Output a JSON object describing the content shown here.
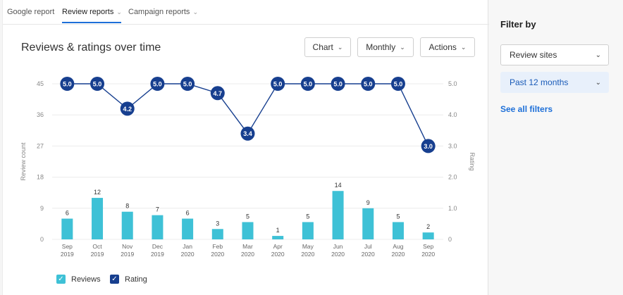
{
  "tabs": [
    {
      "label": "Google report"
    },
    {
      "label": "Review reports",
      "chevron": "chevron-down-icon"
    },
    {
      "label": "Campaign reports",
      "chevron": "chevron-down-icon"
    }
  ],
  "header": {
    "title": "Reviews & ratings over time",
    "chart_label": "Chart",
    "period_label": "Monthly",
    "actions_label": "Actions"
  },
  "legend": {
    "reviews_label": "Reviews",
    "rating_label": "Rating"
  },
  "sidebar": {
    "title": "Filter by",
    "review_sites_label": "Review sites",
    "date_range_label": "Past 12 months",
    "see_all_label": "See all filters"
  },
  "colors": {
    "reviews_bar": "#3ec1d6",
    "rating_line": "#173f8f",
    "accent": "#1d6fd8"
  },
  "chart_data": {
    "type": "bar+line",
    "categories": [
      [
        "Sep",
        "2019"
      ],
      [
        "Oct",
        "2019"
      ],
      [
        "Nov",
        "2019"
      ],
      [
        "Dec",
        "2019"
      ],
      [
        "Jan",
        "2020"
      ],
      [
        "Feb",
        "2020"
      ],
      [
        "Mar",
        "2020"
      ],
      [
        "Apr",
        "2020"
      ],
      [
        "May",
        "2020"
      ],
      [
        "Jun",
        "2020"
      ],
      [
        "Jul",
        "2020"
      ],
      [
        "Aug",
        "2020"
      ],
      [
        "Sep",
        "2020"
      ]
    ],
    "series": [
      {
        "name": "Reviews",
        "type": "bar",
        "axis": "left",
        "values": [
          6,
          12,
          8,
          7,
          6,
          3,
          5,
          1,
          5,
          14,
          9,
          5,
          2
        ]
      },
      {
        "name": "Rating",
        "type": "line",
        "axis": "right",
        "values": [
          5.0,
          5.0,
          4.2,
          5.0,
          5.0,
          4.7,
          3.4,
          5.0,
          5.0,
          5.0,
          5.0,
          5.0,
          3.0
        ]
      }
    ],
    "ylabel": "Review count",
    "y2label": "Rating",
    "yticks": [
      "0",
      "9",
      "18",
      "27",
      "36",
      "45"
    ],
    "y2ticks": [
      "0",
      "1.0",
      "2.0",
      "3.0",
      "4.0",
      "5.0"
    ],
    "ylim": [
      0,
      45
    ],
    "y2lim": [
      0,
      5
    ],
    "grid": true
  }
}
